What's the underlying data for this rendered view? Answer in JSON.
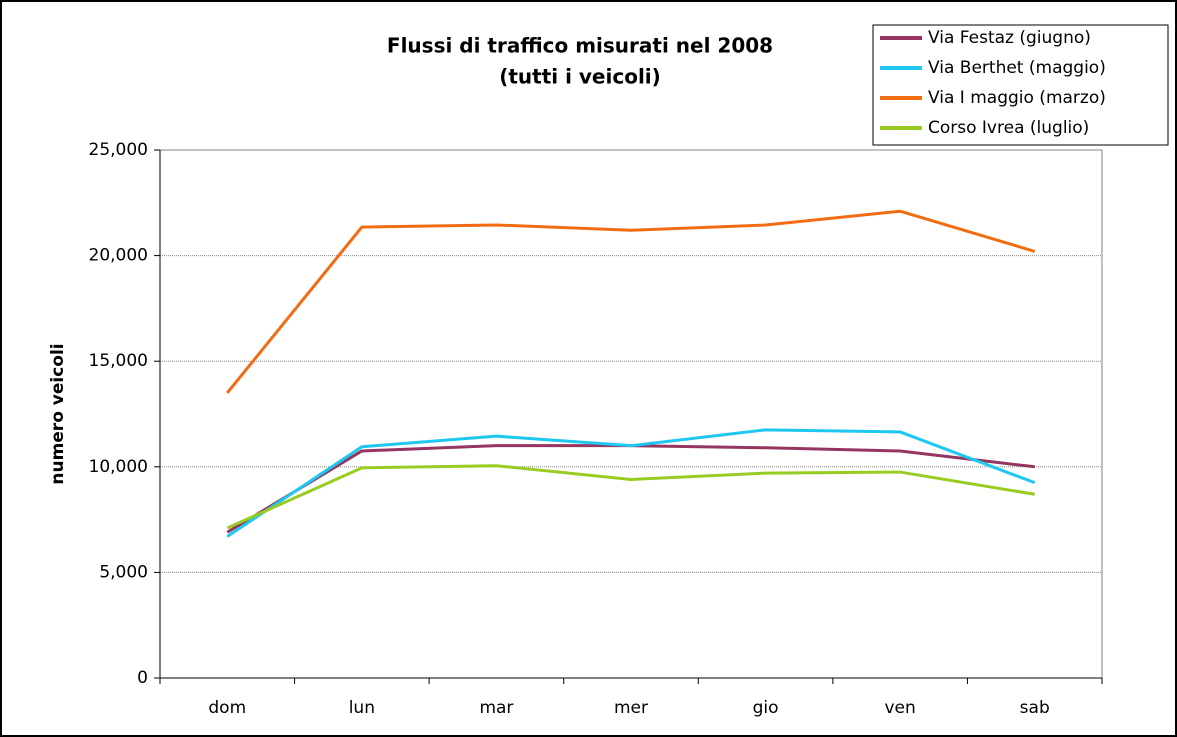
{
  "chart_data": {
    "type": "line",
    "title": [
      "Flussi di traffico misurati nel 2008",
      "(tutti i veicoli)"
    ],
    "ylabel": "numero veicoli",
    "categories": [
      "dom",
      "lun",
      "mar",
      "mer",
      "gio",
      "ven",
      "sab"
    ],
    "ylim": [
      0,
      25000
    ],
    "yticks": [
      0,
      {
        "value": 5000,
        "label": "5,000"
      },
      {
        "value": 10000,
        "label": "10,000"
      },
      {
        "value": 15000,
        "label": "15,000"
      },
      {
        "value": 20000,
        "label": "20,000"
      },
      {
        "value": 25000,
        "label": "25,000"
      }
    ],
    "grid": true,
    "legend": "top-right",
    "series": [
      {
        "name": "Via Festaz (giugno)",
        "color": "#953660",
        "values": [
          6900,
          10750,
          11000,
          11000,
          10900,
          10750,
          10000
        ]
      },
      {
        "name": "Via Berthet (maggio)",
        "color": "#1ec8f0",
        "values": [
          6700,
          10950,
          11450,
          11000,
          11750,
          11650,
          9250
        ]
      },
      {
        "name": "Via I maggio (marzo)",
        "color": "#f26c12",
        "values": [
          13500,
          21350,
          21450,
          21200,
          21450,
          22100,
          20200
        ]
      },
      {
        "name": "Corso Ivrea (luglio)",
        "color": "#99cc22",
        "values": [
          7100,
          9950,
          10050,
          9400,
          9700,
          9750,
          8700
        ]
      }
    ]
  }
}
